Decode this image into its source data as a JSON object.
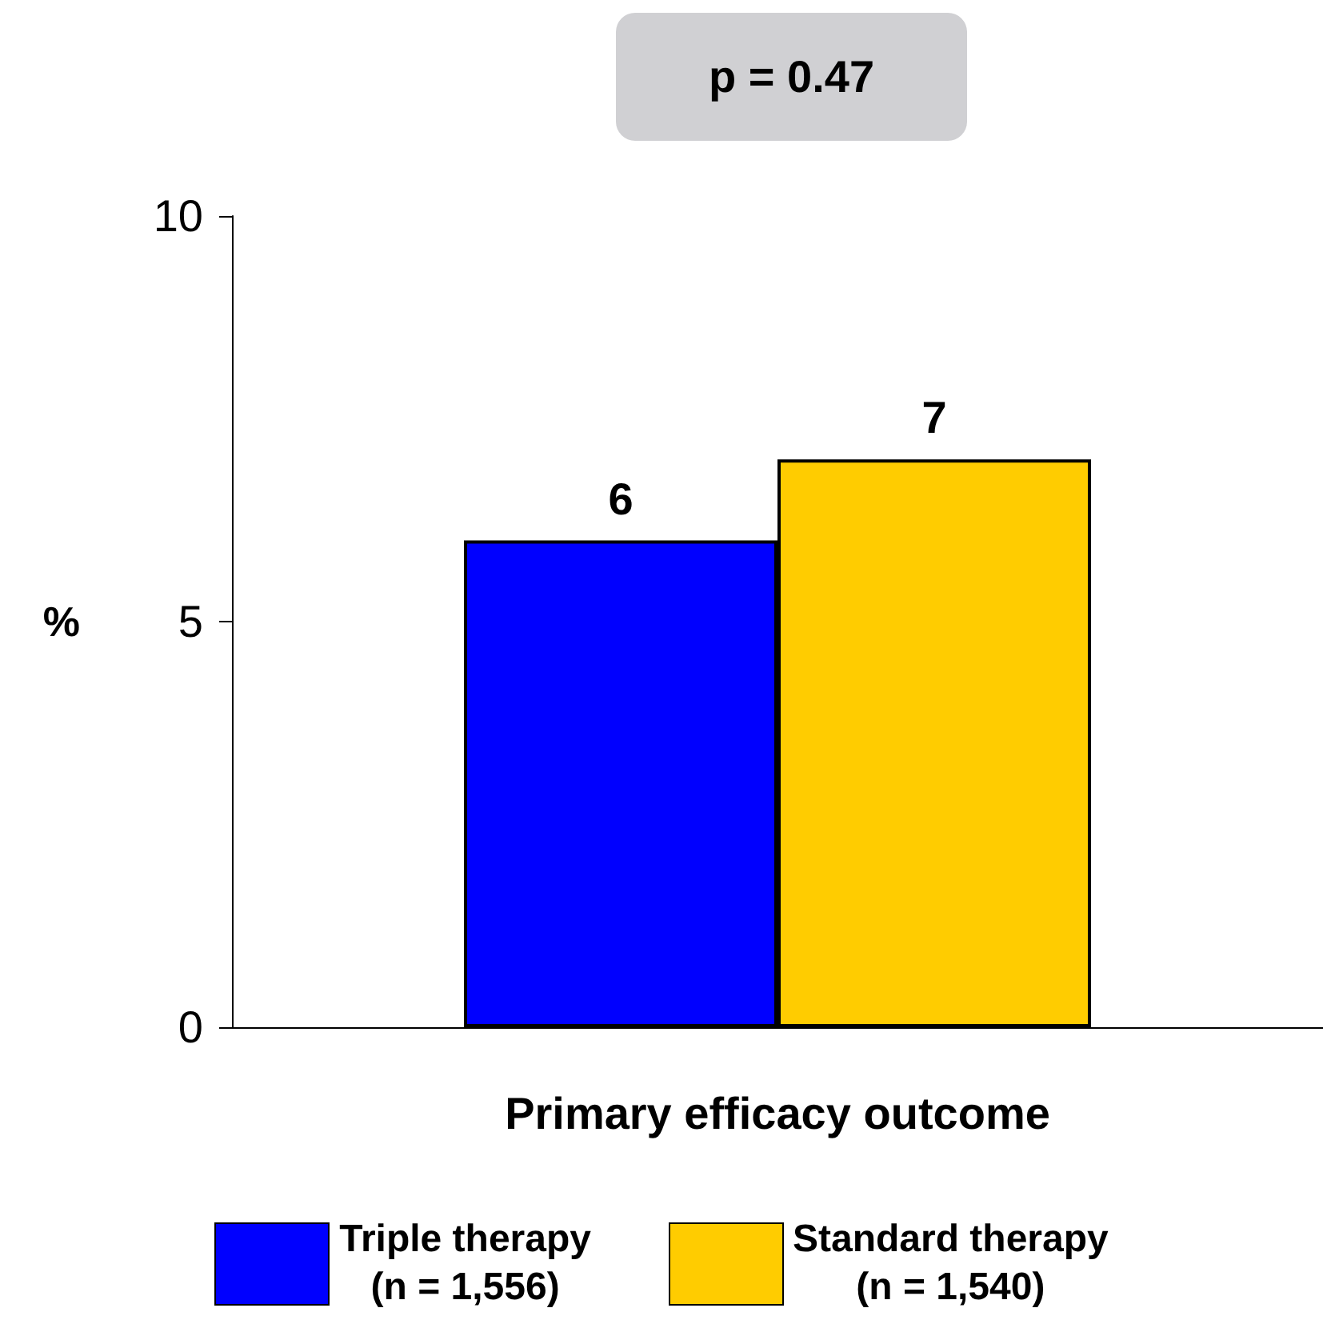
{
  "chart_data": {
    "type": "bar",
    "categories": [
      "Primary efficacy outcome"
    ],
    "ylabel": "%",
    "ylim": [
      0,
      10
    ],
    "yticks": [
      0,
      5,
      10
    ],
    "grid": false,
    "legend": "bottom",
    "data_labels": true,
    "annotations": [
      "p = 0.47"
    ],
    "series": [
      {
        "name": "Triple therapy\n(n = 1,556)",
        "color": "#0000ff",
        "values": [
          6
        ]
      },
      {
        "name": "Standard therapy\n(n = 1,540)",
        "color": "#ffcc00",
        "values": [
          7
        ]
      }
    ]
  }
}
